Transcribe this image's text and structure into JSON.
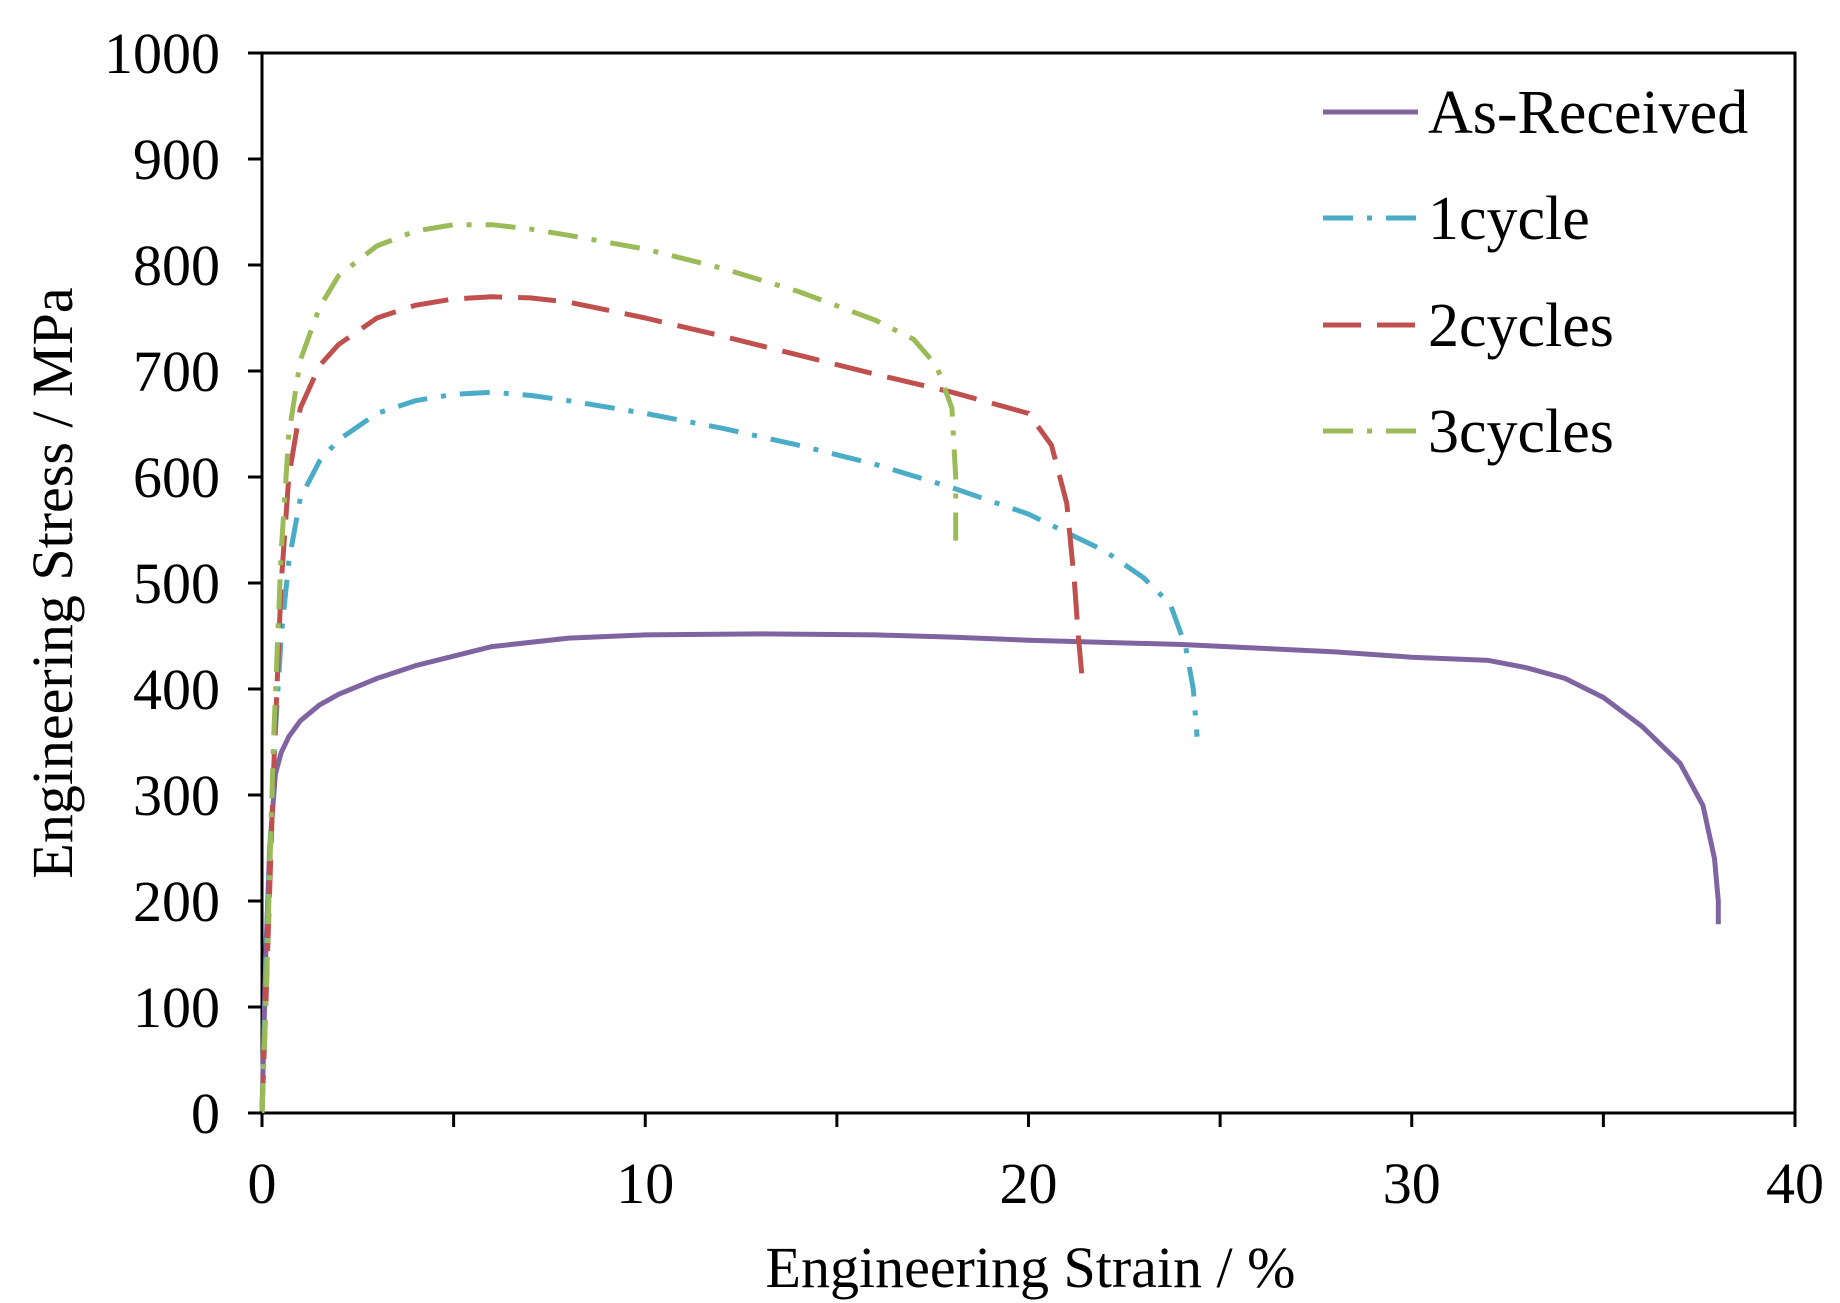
{
  "chart_data": {
    "type": "line",
    "title": "",
    "xlabel": "Engineering Strain / %",
    "ylabel": "Engineering Stress / MPa",
    "xlim": [
      0,
      40
    ],
    "ylim": [
      0,
      1000
    ],
    "xticks": [
      0,
      10,
      20,
      30,
      40
    ],
    "yticks": [
      0,
      100,
      200,
      300,
      400,
      500,
      600,
      700,
      800,
      900,
      1000
    ],
    "xtick_labels": [
      "0",
      "10",
      "20",
      "30",
      "40"
    ],
    "ytick_labels": [
      "0",
      "100",
      "200",
      "300",
      "400",
      "500",
      "600",
      "700",
      "800",
      "900",
      "1000"
    ],
    "grid": false,
    "legend_position": "top-right",
    "series": [
      {
        "name": "As-Received",
        "color": "#8064a2",
        "style": "solid",
        "x": [
          0,
          0.1,
          0.2,
          0.35,
          0.5,
          0.7,
          1.0,
          1.5,
          2.0,
          3.0,
          4.0,
          6.0,
          8.0,
          10.0,
          13.0,
          16.0,
          18.0,
          20.0,
          24.0,
          28.0,
          30.0,
          32.0,
          33.0,
          34.0,
          35.0,
          36.0,
          37.0,
          37.6,
          37.9,
          38.0,
          38.0
        ],
        "y": [
          0,
          150,
          250,
          320,
          340,
          355,
          370,
          385,
          395,
          410,
          422,
          440,
          448,
          451,
          452,
          451,
          449,
          446,
          442,
          435,
          430,
          427,
          420,
          410,
          392,
          365,
          330,
          290,
          240,
          200,
          178
        ]
      },
      {
        "name": "1cycle",
        "color": "#4aacc6",
        "style": "dashdot",
        "x": [
          0,
          0.15,
          0.3,
          0.5,
          0.7,
          1.0,
          1.5,
          2.0,
          3.0,
          4.0,
          5.0,
          6.0,
          7.0,
          8.0,
          10.0,
          12.0,
          14.0,
          16.0,
          18.0,
          20.0,
          22.0,
          23.0,
          23.7,
          24.1,
          24.3,
          24.4
        ],
        "y": [
          0,
          200,
          330,
          450,
          520,
          580,
          615,
          635,
          660,
          672,
          678,
          680,
          677,
          672,
          660,
          646,
          630,
          612,
          590,
          565,
          530,
          505,
          480,
          440,
          400,
          355
        ]
      },
      {
        "name": "2cycles",
        "color": "#c0504d",
        "style": "dashed",
        "x": [
          0,
          0.1,
          0.3,
          0.5,
          0.7,
          1.0,
          1.5,
          2.0,
          3.0,
          4.0,
          5.0,
          6.0,
          7.0,
          8.0,
          10.0,
          12.0,
          14.0,
          16.0,
          18.0,
          20.0,
          20.6,
          21.0,
          21.2,
          21.3,
          21.4
        ],
        "y": [
          0,
          100,
          320,
          500,
          600,
          665,
          705,
          725,
          750,
          762,
          768,
          770,
          769,
          765,
          750,
          733,
          715,
          697,
          680,
          660,
          630,
          575,
          500,
          450,
          410
        ]
      },
      {
        "name": "3cycles",
        "color": "#9bbb59",
        "style": "dashdot",
        "x": [
          0,
          0.1,
          0.3,
          0.5,
          0.7,
          1.0,
          1.5,
          2.0,
          3.0,
          4.0,
          5.0,
          6.0,
          7.0,
          8.0,
          10.0,
          12.0,
          14.0,
          16.0,
          17.0,
          17.6,
          18.0,
          18.1,
          18.1
        ],
        "y": [
          0,
          100,
          350,
          530,
          640,
          710,
          760,
          790,
          818,
          832,
          838,
          838,
          834,
          828,
          815,
          797,
          775,
          748,
          730,
          705,
          665,
          600,
          540
        ]
      }
    ]
  }
}
